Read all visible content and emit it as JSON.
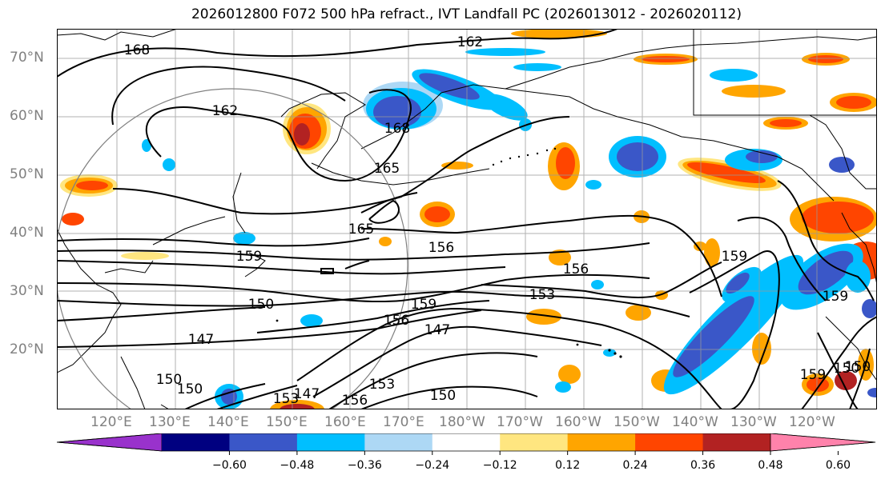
{
  "title": "2026012800 F072 500 hPa refract., IVT Landfall PC (2026013012 - 2026020112)",
  "lat_labels": [
    "70°N",
    "60°N",
    "50°N",
    "40°N",
    "30°N",
    "20°N"
  ],
  "lon_labels": [
    "120°E",
    "130°E",
    "140°E",
    "150°E",
    "160°E",
    "170°E",
    "180°W",
    "170°W",
    "160°W",
    "150°W",
    "140°W",
    "130°W",
    "120°W"
  ],
  "contour_labels": [
    "162",
    "168",
    "165",
    "165",
    "162",
    "168",
    "156",
    "156",
    "159",
    "150",
    "153",
    "159",
    "156",
    "147",
    "147",
    "150",
    "150",
    "153",
    "156",
    "159",
    "150",
    "159",
    "150",
    "153",
    "150",
    "147",
    "159"
  ],
  "colorbar": {
    "ticks": [
      "−0.60",
      "−0.48",
      "−0.36",
      "−0.24",
      "−0.12",
      "0.12",
      "0.24",
      "0.36",
      "0.48",
      "0.60"
    ],
    "colors": [
      "#9932cc",
      "#000080",
      "#3a57c8",
      "#00bfff",
      "#add8f5",
      "#ffffff",
      "#ffe680",
      "#ffa500",
      "#ff4500",
      "#b22222",
      "#ff82ab"
    ]
  },
  "colors": {
    "neg_strong": "#3a57c8",
    "neg_mid": "#00bfff",
    "neg_weak": "#add8f5",
    "pos_weak": "#ffe680",
    "pos_mid": "#ffa500",
    "pos_strong": "#ff4500",
    "pos_max": "#b22222"
  }
}
